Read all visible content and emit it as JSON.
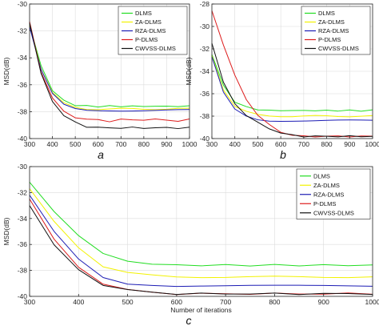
{
  "panels": [
    "a",
    "b",
    "c"
  ],
  "colors": {
    "DLMS": "#22dd22",
    "ZA-DLMS": "#f2f200",
    "RZA-DLMS": "#1c1cb4",
    "P-DLMS": "#dd1c1c",
    "CWVSS-DLMS": "#111111"
  },
  "chart_data": [
    {
      "type": "line",
      "title": "",
      "xlabel": "",
      "ylabel": "MSD(dB)",
      "xlim": [
        300,
        1000
      ],
      "ylim": [
        -40,
        -30
      ],
      "xticks": [
        300,
        400,
        500,
        600,
        700,
        800,
        900,
        1000
      ],
      "yticks": [
        -40,
        -38,
        -36,
        -34,
        -32,
        -30
      ],
      "grid": true,
      "legend_position": "top-right",
      "x": [
        300,
        350,
        400,
        450,
        500,
        550,
        600,
        650,
        700,
        750,
        800,
        850,
        900,
        950,
        1000
      ],
      "series": [
        {
          "name": "DLMS",
          "values": [
            -31.6,
            -34.6,
            -36.4,
            -37.2,
            -37.5,
            -37.6,
            -37.6,
            -37.6,
            -37.6,
            -37.6,
            -37.6,
            -37.6,
            -37.6,
            -37.6,
            -37.6
          ]
        },
        {
          "name": "ZA-DLMS",
          "values": [
            -31.6,
            -34.8,
            -36.6,
            -37.4,
            -37.7,
            -37.8,
            -37.8,
            -37.8,
            -37.8,
            -37.8,
            -37.8,
            -37.8,
            -37.8,
            -37.8,
            -37.8
          ]
        },
        {
          "name": "RZA-DLMS",
          "values": [
            -31.7,
            -34.9,
            -36.7,
            -37.5,
            -37.8,
            -37.9,
            -37.9,
            -37.9,
            -37.9,
            -37.9,
            -37.9,
            -37.9,
            -37.9,
            -37.9,
            -37.9
          ]
        },
        {
          "name": "P-DLMS",
          "values": [
            -31.3,
            -35.0,
            -37.0,
            -38.0,
            -38.4,
            -38.6,
            -38.6,
            -38.7,
            -38.6,
            -38.6,
            -38.6,
            -38.6,
            -38.6,
            -38.7,
            -38.6
          ]
        },
        {
          "name": "CWVSS-DLMS",
          "values": [
            -31.4,
            -35.2,
            -37.2,
            -38.3,
            -38.8,
            -39.1,
            -39.2,
            -39.2,
            -39.2,
            -39.2,
            -39.2,
            -39.2,
            -39.2,
            -39.2,
            -39.2
          ]
        }
      ]
    },
    {
      "type": "line",
      "title": "",
      "xlabel": "",
      "ylabel": "MSD(dB)",
      "xlim": [
        300,
        1000
      ],
      "ylim": [
        -40,
        -28
      ],
      "xticks": [
        300,
        400,
        500,
        600,
        700,
        800,
        900,
        1000
      ],
      "yticks": [
        -40,
        -38,
        -36,
        -34,
        -32,
        -30,
        -28
      ],
      "grid": true,
      "legend_position": "top-right",
      "x": [
        300,
        350,
        400,
        450,
        500,
        550,
        600,
        650,
        700,
        750,
        800,
        850,
        900,
        950,
        1000
      ],
      "series": [
        {
          "name": "DLMS",
          "values": [
            -32.5,
            -35.3,
            -36.7,
            -37.2,
            -37.4,
            -37.5,
            -37.5,
            -37.5,
            -37.5,
            -37.5,
            -37.5,
            -37.5,
            -37.5,
            -37.5,
            -37.5
          ]
        },
        {
          "name": "ZA-DLMS",
          "values": [
            -32.6,
            -35.6,
            -37.1,
            -37.6,
            -37.9,
            -38.0,
            -38.0,
            -38.0,
            -38.0,
            -38.0,
            -38.0,
            -38.0,
            -38.0,
            -38.0,
            -38.0
          ]
        },
        {
          "name": "RZA-DLMS",
          "values": [
            -32.7,
            -35.9,
            -37.4,
            -38.0,
            -38.3,
            -38.4,
            -38.4,
            -38.4,
            -38.4,
            -38.4,
            -38.4,
            -38.4,
            -38.4,
            -38.4,
            -38.4
          ]
        },
        {
          "name": "P-DLMS",
          "values": [
            -28.6,
            -31.6,
            -34.4,
            -36.5,
            -37.9,
            -38.8,
            -39.4,
            -39.7,
            -39.8,
            -39.8,
            -39.8,
            -39.8,
            -39.8,
            -39.8,
            -39.8
          ]
        },
        {
          "name": "CWVSS-DLMS",
          "values": [
            -31.5,
            -35.0,
            -36.9,
            -37.9,
            -38.6,
            -39.1,
            -39.5,
            -39.7,
            -39.8,
            -39.8,
            -39.8,
            -39.8,
            -39.8,
            -39.8,
            -39.8
          ]
        }
      ]
    },
    {
      "type": "line",
      "title": "",
      "xlabel": "Number of iterations",
      "ylabel": "MSD(dB)",
      "xlim": [
        300,
        1000
      ],
      "ylim": [
        -40,
        -30
      ],
      "xticks": [
        300,
        400,
        500,
        600,
        700,
        800,
        900,
        1000
      ],
      "yticks": [
        -40,
        -38,
        -36,
        -34,
        -32,
        -30
      ],
      "grid": true,
      "legend_position": "top-right",
      "x": [
        300,
        350,
        400,
        450,
        500,
        550,
        600,
        650,
        700,
        750,
        800,
        850,
        900,
        950,
        1000
      ],
      "series": [
        {
          "name": "DLMS",
          "values": [
            -31.2,
            -33.5,
            -35.3,
            -36.7,
            -37.3,
            -37.5,
            -37.6,
            -37.6,
            -37.6,
            -37.6,
            -37.6,
            -37.6,
            -37.6,
            -37.6,
            -37.6
          ]
        },
        {
          "name": "ZA-DLMS",
          "values": [
            -31.7,
            -34.2,
            -36.2,
            -37.7,
            -38.2,
            -38.4,
            -38.5,
            -38.5,
            -38.5,
            -38.5,
            -38.5,
            -38.5,
            -38.5,
            -38.5,
            -38.5
          ]
        },
        {
          "name": "RZA-DLMS",
          "values": [
            -32.2,
            -35.0,
            -37.1,
            -38.5,
            -39.0,
            -39.1,
            -39.2,
            -39.2,
            -39.2,
            -39.2,
            -39.2,
            -39.2,
            -39.2,
            -39.2,
            -39.2
          ]
        },
        {
          "name": "P-DLMS",
          "values": [
            -32.5,
            -35.6,
            -37.8,
            -39.0,
            -39.5,
            -39.7,
            -39.8,
            -39.8,
            -39.8,
            -39.8,
            -39.8,
            -39.8,
            -39.8,
            -39.8,
            -39.8
          ]
        },
        {
          "name": "CWVSS-DLMS",
          "values": [
            -33.0,
            -36.0,
            -38.0,
            -39.1,
            -39.5,
            -39.7,
            -39.8,
            -39.8,
            -39.8,
            -39.8,
            -39.8,
            -39.8,
            -39.8,
            -39.8,
            -39.8
          ]
        }
      ]
    }
  ]
}
